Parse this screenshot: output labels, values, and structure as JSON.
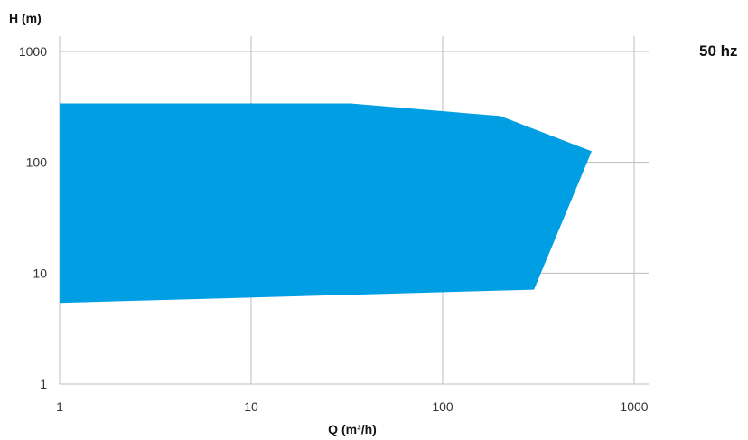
{
  "frequency_label": "50 hz",
  "chart_data": {
    "type": "area",
    "title": "",
    "xlabel": "Q (m³/h)",
    "ylabel": "H (m)",
    "xscale": "log",
    "yscale": "log",
    "xlim": [
      1,
      1000
    ],
    "ylim": [
      1,
      1000
    ],
    "x_ticks": [
      1,
      10,
      100,
      1000
    ],
    "x_tick_labels": [
      "1",
      "10",
      "100",
      "1000"
    ],
    "y_ticks": [
      1,
      10,
      100,
      1000
    ],
    "y_tick_labels": [
      "1",
      "10",
      "100",
      "1000"
    ],
    "grid": true,
    "fill_color": "#009fe3",
    "grid_color": "#bdbdbd",
    "series": [
      {
        "envelope": [
          {
            "x": 1,
            "y": 340
          },
          {
            "x": 33,
            "y": 340
          },
          {
            "x": 200,
            "y": 262
          },
          {
            "x": 600,
            "y": 126
          },
          {
            "x": 300,
            "y": 7.1
          },
          {
            "x": 1,
            "y": 5.4
          }
        ]
      }
    ]
  }
}
